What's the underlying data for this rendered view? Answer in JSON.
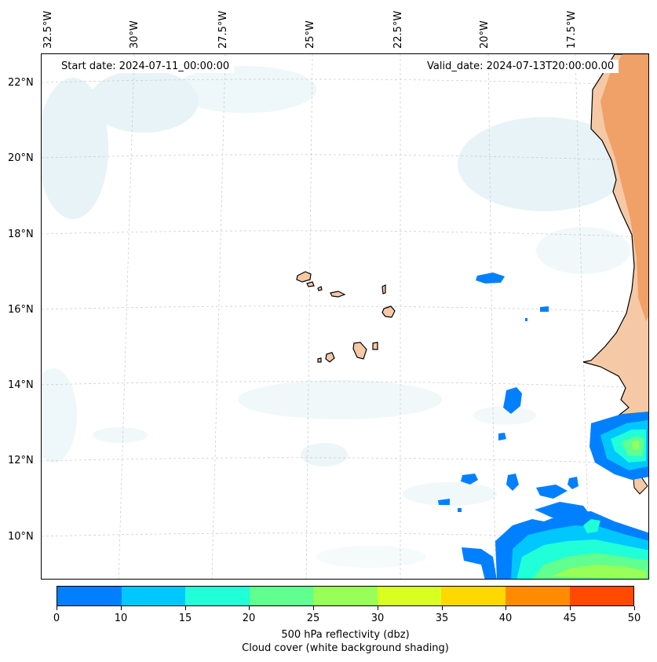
{
  "map": {
    "start_date": "Start date: 2024-07-11_00:00:00",
    "valid_date": "Valid_date: 2024-07-13T20:00:00.00",
    "lon_labels": [
      "32.5°W",
      "30°W",
      "27.5°W",
      "25°W",
      "22.5°W",
      "20°W",
      "17.5°W"
    ],
    "lat_labels": [
      "22°N",
      "20°N",
      "18°N",
      "16°N",
      "14°N",
      "12°N",
      "10°N"
    ],
    "land_color": "#f5c9a6",
    "land_dust_color": "#ef9a5c",
    "cloud_color": "#d3e9f0",
    "gridlines": true
  },
  "colorbar": {
    "ticks": [
      "0",
      "10",
      "15",
      "20",
      "25",
      "30",
      "35",
      "40",
      "45",
      "50"
    ],
    "colors": [
      "#0080ff",
      "#00c8ff",
      "#20ffd8",
      "#60ff90",
      "#98ff58",
      "#d8ff20",
      "#ffd800",
      "#ff8c00",
      "#ff4a00"
    ],
    "label_line1": "500 hPa reflectivity (dbz)",
    "label_line2": "Cloud cover (white background shading)"
  }
}
